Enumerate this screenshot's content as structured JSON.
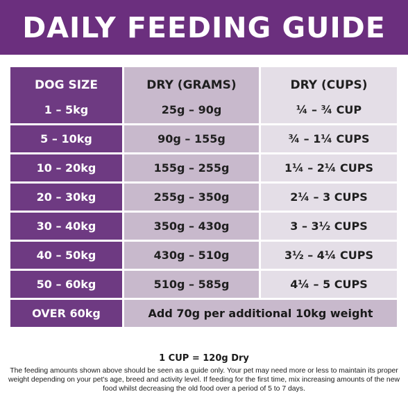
{
  "title": "DAILY FEEDING GUIDE",
  "table": {
    "headers": [
      "DOG SIZE",
      "DRY (GRAMS)",
      "DRY (CUPS)"
    ],
    "rows": [
      {
        "size": "1 – 5kg",
        "grams": "25g – 90g",
        "cups": "¼ – ¾ CUP"
      },
      {
        "size": "5 – 10kg",
        "grams": "90g – 155g",
        "cups": "¾ – 1¼ CUPS"
      },
      {
        "size": "10 – 20kg",
        "grams": "155g – 255g",
        "cups": "1¼ – 2¼ CUPS"
      },
      {
        "size": "20 – 30kg",
        "grams": "255g – 350g",
        "cups": "2¼ – 3 CUPS"
      },
      {
        "size": "30 – 40kg",
        "grams": "350g – 430g",
        "cups": "3 – 3½ CUPS"
      },
      {
        "size": "40 – 50kg",
        "grams": "430g – 510g",
        "cups": "3½ – 4¼ CUPS"
      },
      {
        "size": "50 – 60kg",
        "grams": "510g – 585g",
        "cups": "4¼ – 5 CUPS"
      }
    ],
    "last_row": {
      "size": "OVER 60kg",
      "note": "Add 70g per additional 10kg weight"
    }
  },
  "cup_conversion": "1 CUP = 120g Dry",
  "disclaimer": "The feeding amounts shown above should be seen as a guide only. Your pet may need more or less to maintain its proper weight depending on your pet's age, breed and activity level. If feeding for the first time, mix increasing amounts of the new food whilst decreasing the old food over a period of 5 to 7 days.",
  "colors": {
    "banner": "#6b2f7e",
    "size_column": "#6e3a82",
    "grams_column": "#c8b9cc",
    "cups_column": "#e4dee7"
  }
}
